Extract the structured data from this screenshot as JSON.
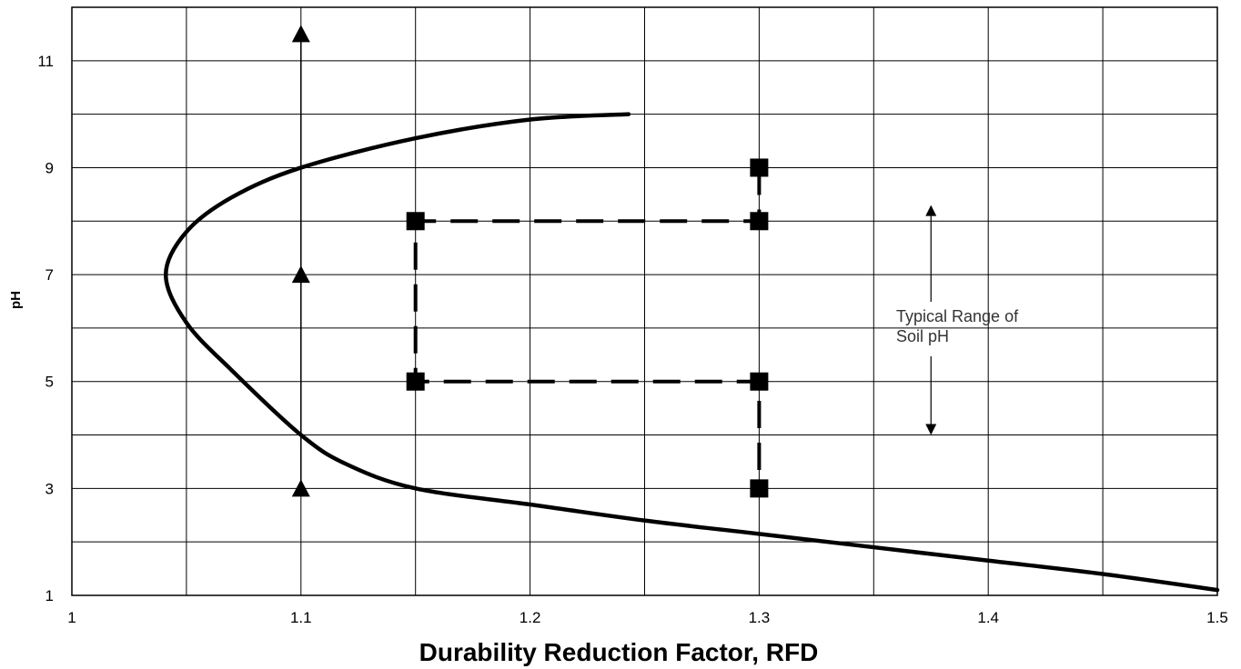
{
  "chart_data": {
    "type": "line",
    "title": "",
    "xlabel": "Durability Reduction Factor, RFD",
    "ylabel": "pH",
    "xlim": [
      1.0,
      1.5
    ],
    "ylim": [
      1,
      12
    ],
    "x_ticks": [
      {
        "value": 1.0,
        "label": "1"
      },
      {
        "value": 1.1,
        "label": "1.1"
      },
      {
        "value": 1.2,
        "label": "1.2"
      },
      {
        "value": 1.3,
        "label": "1.3"
      },
      {
        "value": 1.4,
        "label": "1.4"
      },
      {
        "value": 1.5,
        "label": "1.5"
      }
    ],
    "y_ticks": [
      {
        "value": 1,
        "label": "1"
      },
      {
        "value": 3,
        "label": "3"
      },
      {
        "value": 5,
        "label": "5"
      },
      {
        "value": 7,
        "label": "7"
      },
      {
        "value": 9,
        "label": "9"
      },
      {
        "value": 11,
        "label": "11"
      }
    ],
    "grid": true,
    "x_gridlines": [
      1.05,
      1.1,
      1.15,
      1.2,
      1.25,
      1.3,
      1.35,
      1.4,
      1.45
    ],
    "y_gridlines": [
      2,
      3,
      4,
      5,
      6,
      7,
      8,
      9,
      10,
      11
    ],
    "series": [
      {
        "style": "solid-curve",
        "color": "#000000",
        "points": [
          [
            1.243,
            10.0
          ],
          [
            1.2,
            9.9
          ],
          [
            1.15,
            9.55
          ],
          [
            1.1,
            9.0
          ],
          [
            1.07,
            8.45
          ],
          [
            1.05,
            7.8
          ],
          [
            1.041,
            7.0
          ],
          [
            1.05,
            6.1
          ],
          [
            1.07,
            5.2
          ],
          [
            1.1,
            4.0
          ],
          [
            1.12,
            3.45
          ],
          [
            1.15,
            3.0
          ],
          [
            1.2,
            2.7
          ],
          [
            1.25,
            2.4
          ],
          [
            1.3,
            2.15
          ],
          [
            1.35,
            1.9
          ],
          [
            1.4,
            1.65
          ],
          [
            1.45,
            1.4
          ],
          [
            1.5,
            1.1
          ]
        ]
      },
      {
        "style": "triangle-markers-vertical-line",
        "color": "#000000",
        "points": [
          [
            1.1,
            3
          ],
          [
            1.1,
            7
          ],
          [
            1.1,
            11.5
          ]
        ]
      },
      {
        "style": "square-markers-dashed",
        "color": "#000000",
        "points": [
          [
            1.3,
            9
          ],
          [
            1.3,
            8
          ],
          [
            1.15,
            8
          ],
          [
            1.15,
            5
          ],
          [
            1.3,
            5
          ],
          [
            1.3,
            3
          ]
        ]
      }
    ],
    "annotations": [
      {
        "text_lines": [
          "Typical Range of",
          "Soil pH"
        ],
        "arrow_x": 1.375,
        "arrow_from": 4.0,
        "arrow_to": 8.3
      }
    ]
  }
}
